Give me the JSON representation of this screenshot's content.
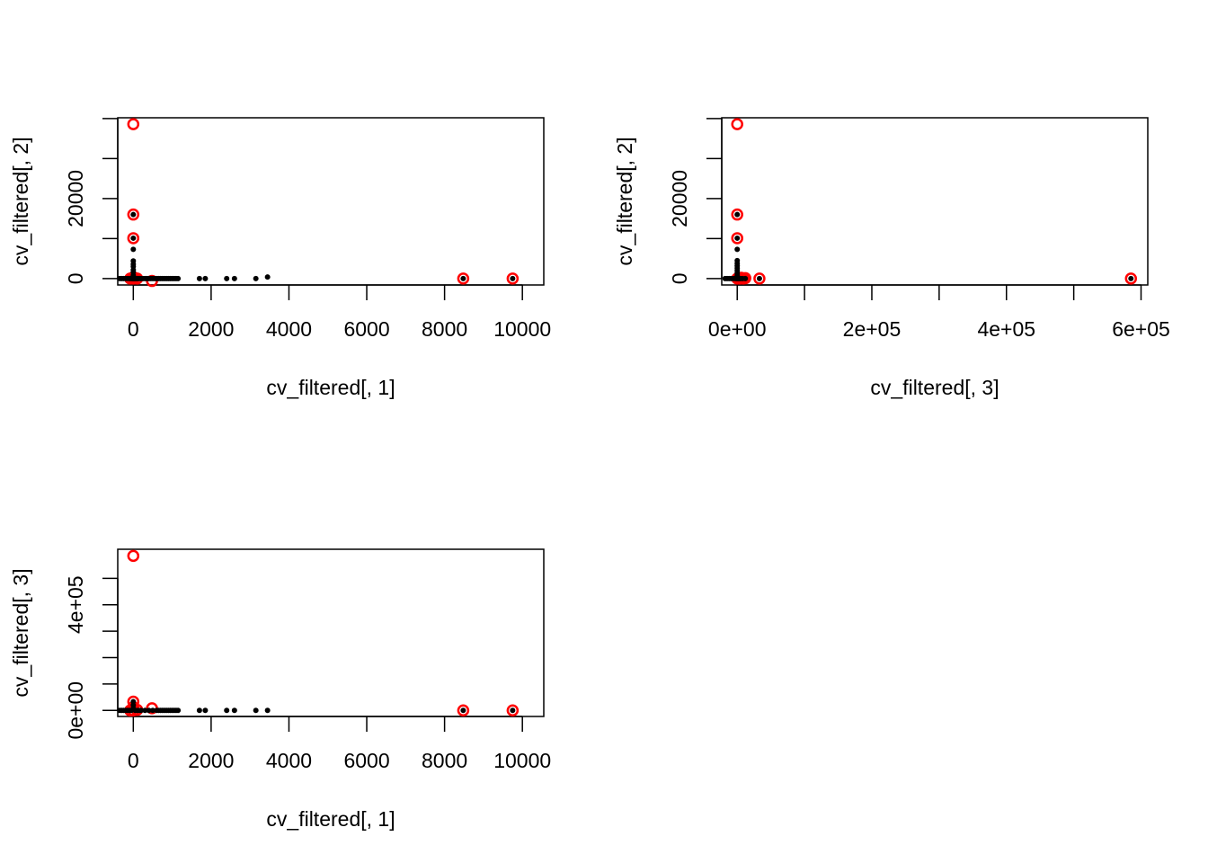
{
  "chart_data": [
    {
      "type": "scatter",
      "title": "",
      "xlabel": "cv_filtered[, 1]",
      "ylabel": "cv_filtered[, 2]",
      "xlim": [
        -400,
        10550
      ],
      "ylim": [
        -1600,
        40200
      ],
      "x_ticks": [
        0,
        2000,
        4000,
        6000,
        8000,
        10000
      ],
      "x_tick_labels": [
        "0",
        "2000",
        "4000",
        "6000",
        "8000",
        "10000"
      ],
      "y_ticks": [
        0,
        10000,
        20000,
        30000,
        40000
      ],
      "y_tick_labels": [
        "0",
        "",
        "20000",
        "",
        ""
      ],
      "points": {
        "x": [
          -350,
          -300,
          -250,
          -200,
          -150,
          -100,
          -60,
          -30,
          -10,
          0,
          5,
          10,
          20,
          30,
          40,
          60,
          80,
          100,
          130,
          160,
          200,
          250,
          300,
          350,
          400,
          450,
          500,
          550,
          600,
          650,
          700,
          750,
          800,
          850,
          900,
          950,
          1000,
          1050,
          1100,
          1150,
          1700,
          1850,
          2400,
          2600,
          3150,
          3450,
          0,
          0,
          0,
          0,
          0,
          0,
          0,
          0,
          0,
          8480,
          9750
        ],
        "y": [
          0,
          0,
          0,
          0,
          0,
          0,
          0,
          0,
          0,
          0,
          0,
          0,
          0,
          0,
          0,
          0,
          0,
          0,
          0,
          0,
          0,
          0,
          0,
          0,
          0,
          0,
          0,
          0,
          0,
          0,
          0,
          0,
          0,
          0,
          0,
          0,
          0,
          0,
          0,
          0,
          0,
          0,
          0,
          0,
          0,
          400,
          800,
          1600,
          2200,
          3000,
          3600,
          4400,
          7300,
          10100,
          16000,
          0,
          0
        ]
      },
      "highlighted": {
        "x": [
          0,
          0,
          0,
          0,
          -80,
          0,
          30,
          100,
          480,
          8480,
          9750
        ],
        "y": [
          38600,
          16000,
          10100,
          0,
          0,
          300,
          200,
          0,
          -600,
          0,
          0
        ]
      },
      "colors": {
        "points": "#000000",
        "highlighted": "#ff0000"
      }
    },
    {
      "type": "scatter",
      "title": "",
      "xlabel": "cv_filtered[, 3]",
      "ylabel": "cv_filtered[, 2]",
      "xlim": [
        -23000,
        610000
      ],
      "ylim": [
        -1600,
        40200
      ],
      "x_ticks": [
        0,
        100000,
        200000,
        300000,
        400000,
        500000,
        600000
      ],
      "x_tick_labels": [
        "0e+00",
        "",
        "2e+05",
        "",
        "4e+05",
        "",
        "6e+05"
      ],
      "y_ticks": [
        0,
        10000,
        20000,
        30000,
        40000
      ],
      "y_tick_labels": [
        "0",
        "",
        "20000",
        "",
        ""
      ],
      "points": {
        "x": [
          -18000,
          -15000,
          -12000,
          -9000,
          -6000,
          -3000,
          -1000,
          0,
          0,
          0,
          0,
          0,
          0,
          0,
          0,
          0,
          0,
          0,
          0,
          1000,
          2000,
          3000,
          5000,
          8000,
          12000,
          33000,
          585000
        ],
        "y": [
          0,
          0,
          0,
          0,
          0,
          0,
          0,
          0,
          400,
          800,
          1400,
          2000,
          2600,
          3200,
          3800,
          4500,
          7300,
          10100,
          16000,
          0,
          0,
          0,
          0,
          0,
          0,
          0,
          0
        ]
      },
      "highlighted": {
        "x": [
          0,
          0,
          0,
          0,
          2000,
          4000,
          6000,
          9000,
          12000,
          33000,
          585000
        ],
        "y": [
          38600,
          16000,
          10100,
          0,
          100,
          0,
          200,
          0,
          100,
          0,
          0
        ]
      },
      "colors": {
        "points": "#000000",
        "highlighted": "#ff0000"
      }
    },
    {
      "type": "scatter",
      "title": "",
      "xlabel": "cv_filtered[, 1]",
      "ylabel": "cv_filtered[, 3]",
      "xlim": [
        -400,
        10550
      ],
      "ylim": [
        -23000,
        610000
      ],
      "x_ticks": [
        0,
        2000,
        4000,
        6000,
        8000,
        10000
      ],
      "x_tick_labels": [
        "0",
        "2000",
        "4000",
        "6000",
        "8000",
        "10000"
      ],
      "y_ticks": [
        0,
        100000,
        200000,
        300000,
        400000,
        500000
      ],
      "y_tick_labels": [
        "0e+00",
        "",
        "",
        "",
        "4e+05",
        ""
      ],
      "points": {
        "x": [
          -350,
          -300,
          -250,
          -200,
          -150,
          -100,
          -50,
          0,
          0,
          0,
          0,
          50,
          100,
          150,
          200,
          300,
          400,
          500,
          600,
          650,
          700,
          750,
          800,
          850,
          900,
          950,
          1000,
          1050,
          1100,
          1150,
          1700,
          1850,
          2400,
          2600,
          3150,
          3450,
          8480,
          9750
        ],
        "y": [
          0,
          0,
          0,
          0,
          0,
          0,
          0,
          3000,
          8000,
          20000,
          33000,
          0,
          0,
          0,
          0,
          0,
          0,
          0,
          0,
          0,
          0,
          0,
          0,
          0,
          0,
          0,
          0,
          0,
          0,
          0,
          0,
          0,
          0,
          0,
          0,
          0,
          0,
          0
        ]
      },
      "highlighted": {
        "x": [
          0,
          0,
          0,
          0,
          -80,
          100,
          480,
          8480,
          9750
        ],
        "y": [
          585000,
          33000,
          12000,
          0,
          0,
          2000,
          8000,
          0,
          0
        ]
      },
      "colors": {
        "points": "#000000",
        "highlighted": "#ff0000"
      }
    }
  ]
}
